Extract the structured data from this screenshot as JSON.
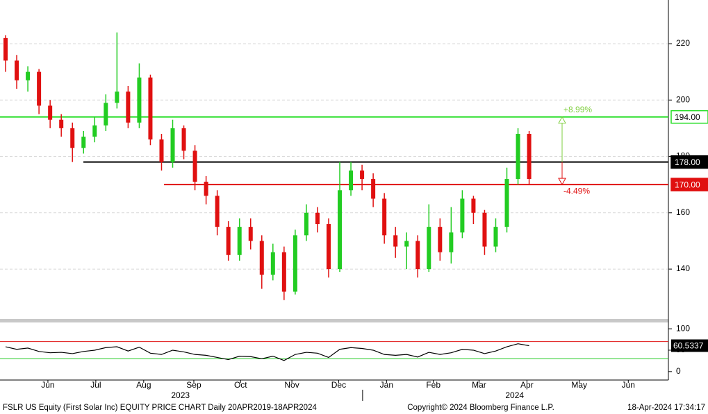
{
  "chart_data": [
    {
      "type": "candlestick",
      "x": [
        0,
        1,
        2,
        3,
        4,
        5,
        6,
        7,
        8,
        9,
        10,
        11,
        12,
        13,
        14,
        15,
        16,
        17,
        18,
        19,
        20,
        21,
        22,
        23,
        24,
        25,
        26,
        27,
        28,
        29,
        30,
        31,
        32,
        33,
        34,
        35,
        36,
        37,
        38,
        39,
        40,
        41,
        42,
        43,
        44,
        45,
        46,
        47
      ],
      "open": [
        222,
        214,
        207,
        210,
        198,
        193,
        190,
        183,
        187,
        191,
        199,
        203,
        192,
        208,
        186,
        178,
        190,
        182,
        171,
        166,
        155,
        145,
        155,
        150,
        138,
        146,
        132,
        152,
        160,
        156,
        140,
        168,
        175,
        172,
        165,
        152,
        148,
        150,
        140,
        155,
        146,
        153,
        165,
        160,
        148,
        155,
        172,
        188
      ],
      "high": [
        223,
        216,
        212,
        211,
        200,
        195,
        192,
        189,
        194,
        202,
        224,
        205,
        213,
        209,
        188,
        193,
        191,
        184,
        173,
        168,
        157,
        158,
        158,
        152,
        149,
        148,
        154,
        163,
        162,
        158,
        178,
        178,
        177,
        174,
        167,
        155,
        153,
        152,
        163,
        158,
        162,
        168,
        166,
        161,
        158,
        176,
        190,
        189
      ],
      "low": [
        210,
        204,
        203,
        195,
        190,
        187,
        178,
        181,
        185,
        189,
        197,
        190,
        190,
        184,
        175,
        176,
        179,
        168,
        163,
        152,
        143,
        143,
        147,
        133,
        136,
        129,
        131,
        150,
        153,
        137,
        139,
        166,
        168,
        162,
        149,
        144,
        140,
        137,
        139,
        143,
        142,
        151,
        156,
        145,
        146,
        153,
        170,
        170
      ],
      "close": [
        214,
        207,
        210,
        198,
        193,
        190,
        183,
        187,
        191,
        199,
        203,
        192,
        208,
        186,
        178,
        190,
        182,
        171,
        166,
        155,
        145,
        155,
        150,
        138,
        146,
        132,
        152,
        160,
        156,
        140,
        168,
        175,
        172,
        165,
        152,
        148,
        150,
        140,
        155,
        146,
        153,
        165,
        160,
        148,
        155,
        172,
        188,
        172
      ],
      "up_color": "#22cc22",
      "down_color": "#e01010",
      "xlim": [
        0,
        60
      ],
      "ylim": [
        122.3,
        235.5
      ],
      "yticks": [
        140,
        160,
        180,
        200,
        220
      ],
      "grid": true,
      "levels": {
        "values": [
          194,
          178,
          170
        ],
        "value_labels": [
          "194.00",
          "178.00",
          "170.00"
        ],
        "colors": [
          "#22dd22",
          "#000000",
          "#e01010"
        ]
      },
      "annotations": [
        {
          "text": "+8.99%",
          "from": 178,
          "to": 194,
          "color": "#7fcf3f"
        },
        {
          "text": "-4.49%",
          "from": 178,
          "to": 170,
          "color": "#e01010"
        }
      ]
    },
    {
      "type": "line",
      "x": [
        0,
        1,
        2,
        3,
        4,
        5,
        6,
        7,
        8,
        9,
        10,
        11,
        12,
        13,
        14,
        15,
        16,
        17,
        18,
        19,
        20,
        21,
        22,
        23,
        24,
        25,
        26,
        27,
        28,
        29,
        30,
        31,
        32,
        33,
        34,
        35,
        36,
        37,
        38,
        39,
        40,
        41,
        42,
        43,
        44,
        45,
        46,
        47
      ],
      "values": [
        58,
        52,
        55,
        47,
        44,
        45,
        42,
        47,
        50,
        56,
        58,
        48,
        57,
        43,
        40,
        50,
        46,
        40,
        38,
        33,
        28,
        36,
        35,
        30,
        36,
        26,
        40,
        45,
        43,
        33,
        52,
        56,
        54,
        50,
        40,
        38,
        40,
        34,
        45,
        40,
        44,
        52,
        50,
        42,
        48,
        58,
        65,
        60.5337
      ],
      "color": "#000000",
      "xlim": [
        0,
        60
      ],
      "ylim": [
        -19.7,
        118
      ],
      "yticks": [
        0,
        50,
        100
      ],
      "levels": {
        "values": [
          70,
          30
        ],
        "colors": [
          "#e01010",
          "#22cc22"
        ]
      },
      "xticks": [
        {
          "value": 4.3,
          "label": "Jun"
        },
        {
          "value": 8.6,
          "label": "Jul"
        },
        {
          "value": 12.9,
          "label": "Aug"
        },
        {
          "value": 17.4,
          "label": "Sep"
        },
        {
          "value": 21.6,
          "label": "Oct"
        },
        {
          "value": 26.2,
          "label": "Nov"
        },
        {
          "value": 30.4,
          "label": "Dec"
        },
        {
          "value": 34.7,
          "label": "Jan"
        },
        {
          "value": 38.9,
          "label": "Feb"
        },
        {
          "value": 43.0,
          "label": "Mar"
        },
        {
          "value": 47.3,
          "label": "Apr"
        },
        {
          "value": 52.0,
          "label": "May"
        },
        {
          "value": 56.4,
          "label": "Jun"
        }
      ],
      "year_ticks": [
        {
          "value": 16.2,
          "label": "2023"
        },
        {
          "value": 46.2,
          "label": "2024"
        }
      ]
    }
  ],
  "footer": {
    "left": "FSLR US Equity (First Solar Inc) EQUITY PRICE CHART  Daily 20APR2019-18APR2024",
    "center": "Copyright© 2024 Bloomberg Finance L.P.",
    "right": "18-Apr-2024 17:34:17"
  }
}
